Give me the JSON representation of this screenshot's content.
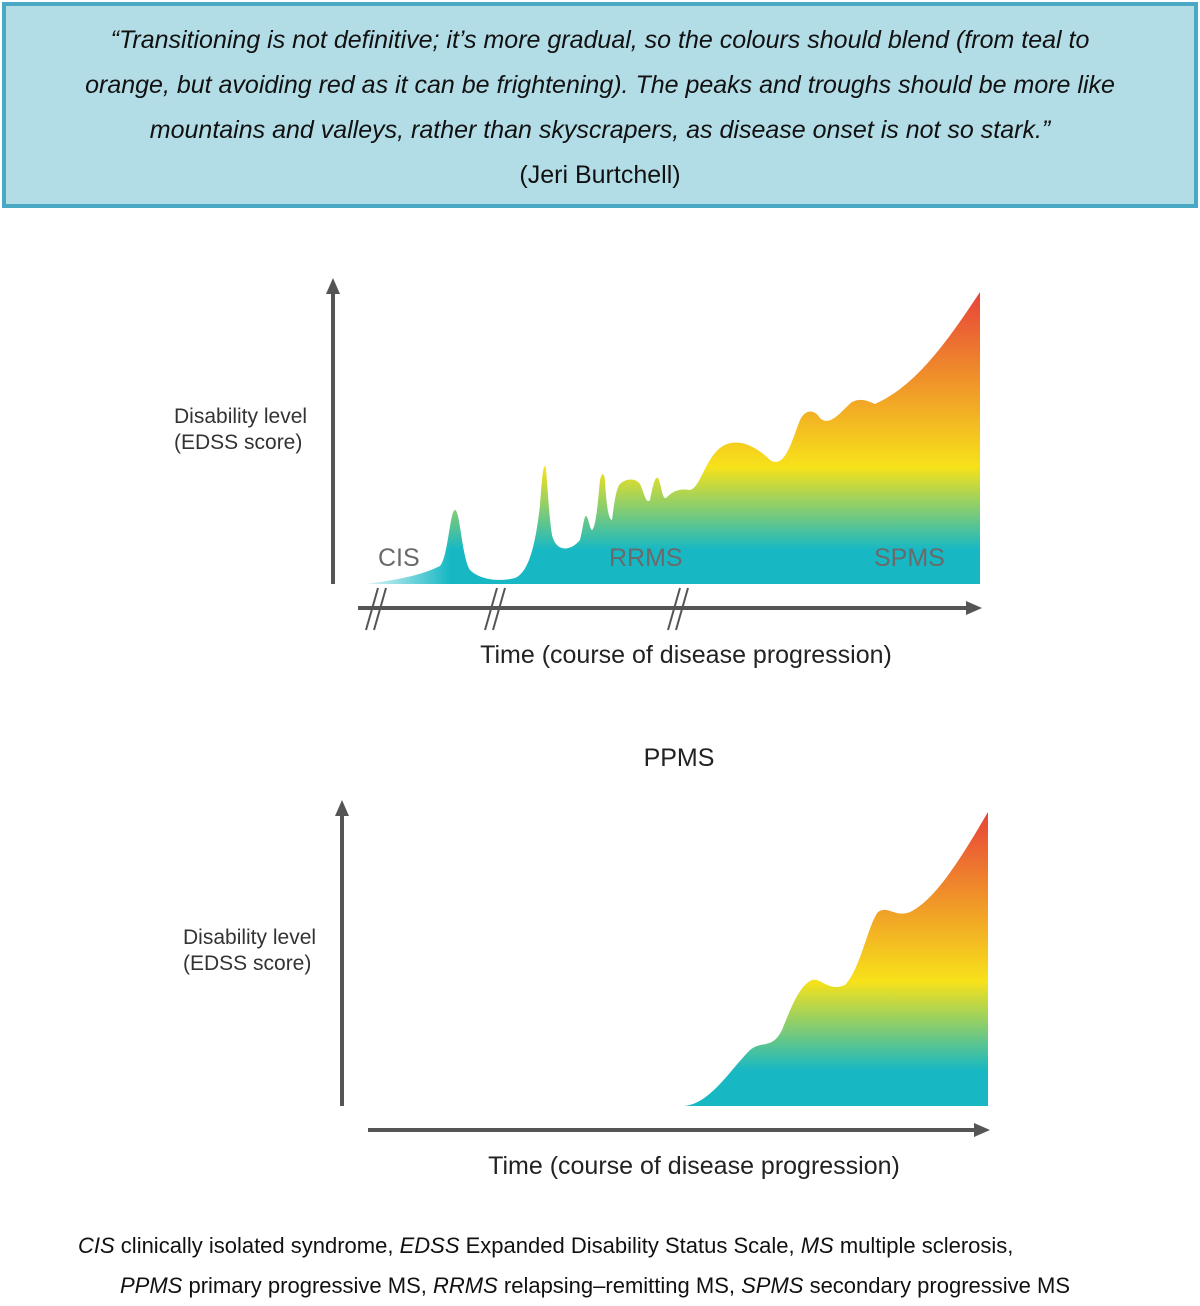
{
  "quote": {
    "lines": [
      "“Transitioning is not definitive; it’s more gradual, so the colours should blend (from teal to",
      "orange, but avoiding red as it can be frightening). The peaks and troughs should be more like",
      "mountains and valleys, rather than skyscrapers, as disease onset is not so stark.”"
    ],
    "author": "(Jeri Burtchell)"
  },
  "colors": {
    "quote_bg": "#b3dde6",
    "quote_border": "#4aa8c4",
    "gradient_low": "#17b8c4",
    "gradient_mid": "#f7e21a",
    "gradient_high": "#e8403a"
  },
  "diagram_top": {
    "ylabel_line1": "Disability level",
    "ylabel_line2": "(EDSS score)",
    "xlabel": "Time (course of disease progression)",
    "phases": [
      "CIS",
      "RRMS",
      "SPMS"
    ]
  },
  "diagram_bottom": {
    "title": "PPMS",
    "ylabel_line1": "Disability level",
    "ylabel_line2": "(EDSS score)",
    "xlabel": "Time (course of disease progression)"
  },
  "footnote": {
    "abbr_cis": "CIS",
    "def_cis": " clinically isolated syndrome, ",
    "abbr_edss": "EDSS",
    "def_edss": " Expanded Disability Status Scale, ",
    "abbr_ms": "MS",
    "def_ms": " multiple sclerosis,",
    "abbr_ppms": "PPMS",
    "def_ppms": " primary progressive MS, ",
    "abbr_rrms": "RRMS",
    "def_rrms": " relapsing–remitting MS, ",
    "abbr_spms": "SPMS",
    "def_spms": " secondary progressive MS"
  }
}
